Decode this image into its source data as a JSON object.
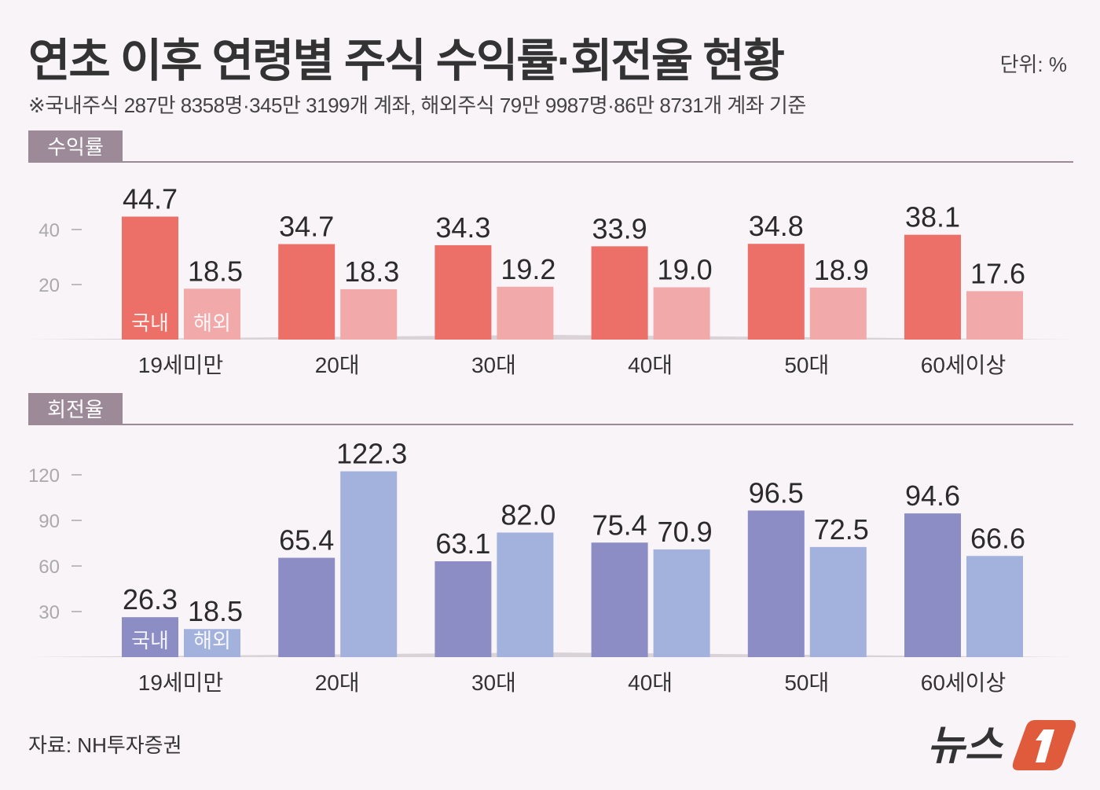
{
  "title": "연초 이후 연령별 주식 수익률·회전율 현황",
  "unit": "단위:  %",
  "note": "※국내주식 287만 8358명·345만 3199개 계좌, 해외주식 79만 9987명·86만 8731개 계좌 기준",
  "source": "자료: NH투자증권",
  "logo": "뉴스1",
  "colors": {
    "background": "#f8f4f8",
    "section_tab": "#9d8a98",
    "return_domestic": "#ec7068",
    "return_overseas": "#f2a9aa",
    "turnover_domestic": "#8d8dc6",
    "turnover_overseas": "#a3b2dd",
    "logo_accent": "#e05a3c"
  },
  "chart_data": [
    {
      "type": "bar",
      "title": "수익률",
      "categories": [
        "19세미만",
        "20대",
        "30대",
        "40대",
        "50대",
        "60세이상"
      ],
      "series": [
        {
          "name": "국내",
          "values": [
            44.7,
            34.7,
            34.3,
            33.9,
            34.8,
            38.1
          ]
        },
        {
          "name": "해외",
          "values": [
            18.5,
            18.3,
            19.2,
            19.0,
            18.9,
            17.6
          ]
        }
      ],
      "yticks": [
        20,
        40
      ],
      "ylim": [
        0,
        45
      ],
      "grid": false,
      "legend": "inside-first-bars"
    },
    {
      "type": "bar",
      "title": "회전율",
      "categories": [
        "19세미만",
        "20대",
        "30대",
        "40대",
        "50대",
        "60세이상"
      ],
      "series": [
        {
          "name": "국내",
          "values": [
            26.3,
            65.4,
            63.1,
            75.4,
            96.5,
            94.6
          ]
        },
        {
          "name": "해외",
          "values": [
            18.5,
            122.3,
            82.0,
            70.9,
            72.5,
            66.6
          ]
        }
      ],
      "yticks": [
        30,
        60,
        90,
        120
      ],
      "ylim": [
        0,
        125
      ],
      "grid": false,
      "legend": "inside-first-bars"
    }
  ]
}
